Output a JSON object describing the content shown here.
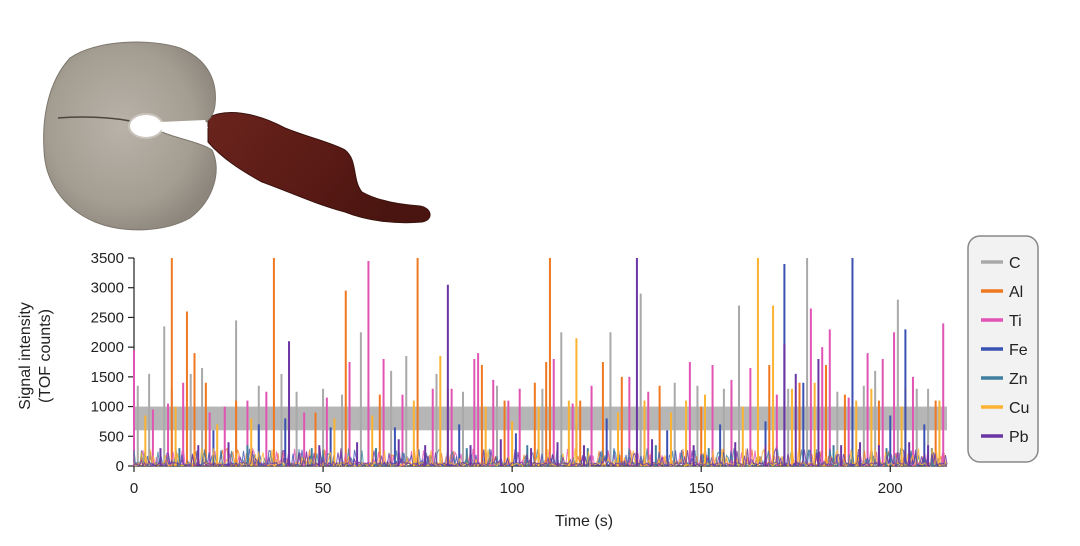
{
  "chart_data": {
    "type": "line",
    "title": "",
    "xlabel": "Time (s)",
    "ylabel": [
      "Signal intensity",
      "(TOF counts)"
    ],
    "xlim": [
      0,
      215
    ],
    "ylim": [
      0,
      3500
    ],
    "xticks": [
      0,
      50,
      100,
      150,
      200
    ],
    "yticks": [
      0,
      500,
      1000,
      1500,
      2000,
      2500,
      3000,
      3500
    ],
    "grid": false,
    "legend_position": "right",
    "series": [
      {
        "name": "C",
        "color": "#a9a9a9",
        "baseline_band": [
          600,
          1000
        ],
        "peaks": [
          [
            1,
            1350
          ],
          [
            4,
            1550
          ],
          [
            8,
            2350
          ],
          [
            10,
            1300
          ],
          [
            15,
            1550
          ],
          [
            18,
            1650
          ],
          [
            27,
            2450
          ],
          [
            33,
            1350
          ],
          [
            39,
            1550
          ],
          [
            43,
            1250
          ],
          [
            50,
            1300
          ],
          [
            55,
            1200
          ],
          [
            60,
            2250
          ],
          [
            62,
            1250
          ],
          [
            68,
            1600
          ],
          [
            72,
            1850
          ],
          [
            80,
            1550
          ],
          [
            87,
            1250
          ],
          [
            96,
            1350
          ],
          [
            108,
            1300
          ],
          [
            113,
            2250
          ],
          [
            121,
            1300
          ],
          [
            126,
            2250
          ],
          [
            134,
            2900
          ],
          [
            143,
            1400
          ],
          [
            149,
            1350
          ],
          [
            156,
            1300
          ],
          [
            160,
            2700
          ],
          [
            173,
            1300
          ],
          [
            178,
            3500
          ],
          [
            186,
            1250
          ],
          [
            193,
            1350
          ],
          [
            196,
            1600
          ],
          [
            202,
            2800
          ],
          [
            207,
            1300
          ],
          [
            210,
            1300
          ]
        ]
      },
      {
        "name": "Al",
        "color": "#f07820",
        "peaks": [
          [
            10,
            3500
          ],
          [
            14,
            2600
          ],
          [
            16,
            1900
          ],
          [
            19,
            1400
          ],
          [
            27,
            1100
          ],
          [
            37,
            3500
          ],
          [
            48,
            900
          ],
          [
            56,
            2950
          ],
          [
            65,
            1200
          ],
          [
            75,
            3500
          ],
          [
            83,
            1300
          ],
          [
            92,
            1700
          ],
          [
            98,
            1100
          ],
          [
            106,
            1400
          ],
          [
            109,
            1750
          ],
          [
            110,
            3500
          ],
          [
            118,
            1100
          ],
          [
            124,
            1750
          ],
          [
            129,
            1500
          ],
          [
            139,
            1350
          ],
          [
            150,
            1000
          ],
          [
            158,
            1300
          ],
          [
            168,
            1700
          ],
          [
            176,
            1400
          ],
          [
            183,
            1700
          ],
          [
            188,
            1200
          ],
          [
            197,
            1100
          ],
          [
            204,
            1300
          ],
          [
            212,
            1100
          ]
        ]
      },
      {
        "name": "Ti",
        "color": "#e055b4",
        "peaks": [
          [
            0,
            1950
          ],
          [
            5,
            950
          ],
          [
            9,
            1050
          ],
          [
            13,
            1400
          ],
          [
            20,
            900
          ],
          [
            24,
            1000
          ],
          [
            30,
            1100
          ],
          [
            35,
            1250
          ],
          [
            45,
            900
          ],
          [
            51,
            1150
          ],
          [
            57,
            1750
          ],
          [
            62,
            3450
          ],
          [
            66,
            1800
          ],
          [
            71,
            1200
          ],
          [
            79,
            1300
          ],
          [
            84,
            1300
          ],
          [
            90,
            1800
          ],
          [
            91,
            1900
          ],
          [
            95,
            1450
          ],
          [
            99,
            1100
          ],
          [
            102,
            1300
          ],
          [
            111,
            1800
          ],
          [
            116,
            1050
          ],
          [
            121,
            1350
          ],
          [
            131,
            1500
          ],
          [
            136,
            1250
          ],
          [
            147,
            1750
          ],
          [
            153,
            1700
          ],
          [
            158,
            1450
          ],
          [
            163,
            1650
          ],
          [
            170,
            1200
          ],
          [
            179,
            2650
          ],
          [
            182,
            2000
          ],
          [
            184,
            2300
          ],
          [
            189,
            1150
          ],
          [
            194,
            1900
          ],
          [
            198,
            1800
          ],
          [
            201,
            2250
          ],
          [
            206,
            1500
          ],
          [
            214,
            2400
          ]
        ]
      },
      {
        "name": "Fe",
        "color": "#3b52b2",
        "peaks": [
          [
            21,
            600
          ],
          [
            33,
            700
          ],
          [
            40,
            800
          ],
          [
            52,
            650
          ],
          [
            69,
            650
          ],
          [
            86,
            700
          ],
          [
            101,
            550
          ],
          [
            117,
            700
          ],
          [
            125,
            800
          ],
          [
            141,
            600
          ],
          [
            155,
            700
          ],
          [
            167,
            750
          ],
          [
            172,
            3400
          ],
          [
            177,
            1400
          ],
          [
            190,
            3500
          ],
          [
            200,
            850
          ],
          [
            204,
            2300
          ],
          [
            209,
            700
          ]
        ]
      },
      {
        "name": "Zn",
        "color": "#3f7f9e",
        "peaks": [
          [
            12,
            300
          ],
          [
            30,
            350
          ],
          [
            47,
            300
          ],
          [
            64,
            300
          ],
          [
            88,
            300
          ],
          [
            104,
            350
          ],
          [
            120,
            300
          ],
          [
            138,
            350
          ],
          [
            152,
            300
          ],
          [
            167,
            300
          ],
          [
            185,
            350
          ],
          [
            199,
            300
          ],
          [
            211,
            300
          ]
        ]
      },
      {
        "name": "Cu",
        "color": "#fbb331",
        "peaks": [
          [
            3,
            850
          ],
          [
            11,
            1000
          ],
          [
            22,
            700
          ],
          [
            31,
            800
          ],
          [
            41,
            900
          ],
          [
            53,
            800
          ],
          [
            63,
            850
          ],
          [
            74,
            1100
          ],
          [
            81,
            1850
          ],
          [
            93,
            1000
          ],
          [
            100,
            750
          ],
          [
            107,
            1000
          ],
          [
            115,
            1100
          ],
          [
            117,
            2150
          ],
          [
            128,
            900
          ],
          [
            135,
            1100
          ],
          [
            142,
            900
          ],
          [
            146,
            1100
          ],
          [
            151,
            1200
          ],
          [
            161,
            1000
          ],
          [
            165,
            3500
          ],
          [
            169,
            2700
          ],
          [
            174,
            1300
          ],
          [
            180,
            1400
          ],
          [
            191,
            1100
          ],
          [
            195,
            1300
          ],
          [
            203,
            1000
          ],
          [
            213,
            1100
          ]
        ]
      },
      {
        "name": "Pb",
        "color": "#6b35a3",
        "peaks": [
          [
            7,
            300
          ],
          [
            17,
            350
          ],
          [
            25,
            400
          ],
          [
            41,
            2100
          ],
          [
            49,
            350
          ],
          [
            59,
            400
          ],
          [
            70,
            450
          ],
          [
            77,
            350
          ],
          [
            83,
            3050
          ],
          [
            89,
            350
          ],
          [
            97,
            450
          ],
          [
            105,
            300
          ],
          [
            112,
            400
          ],
          [
            119,
            350
          ],
          [
            133,
            3500
          ],
          [
            137,
            450
          ],
          [
            148,
            350
          ],
          [
            159,
            400
          ],
          [
            167,
            350
          ],
          [
            172,
            2050
          ],
          [
            175,
            1550
          ],
          [
            181,
            1800
          ],
          [
            187,
            350
          ],
          [
            192,
            400
          ],
          [
            197,
            350
          ],
          [
            205,
            400
          ],
          [
            210,
            350
          ]
        ]
      }
    ]
  }
}
